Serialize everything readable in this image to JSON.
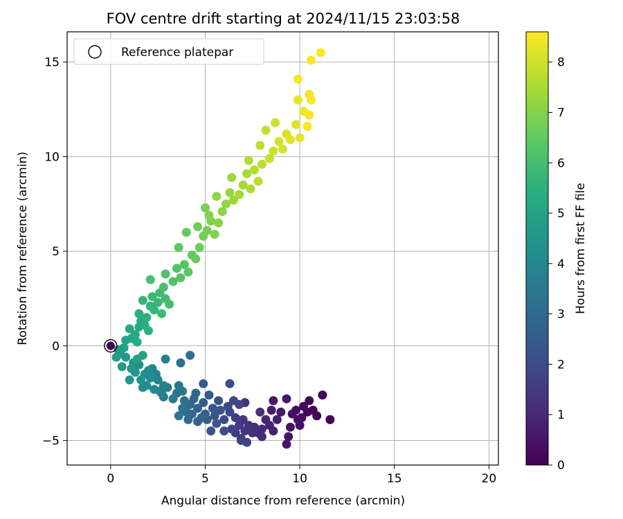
{
  "chart_data": {
    "type": "scatter",
    "title": "FOV centre drift starting at 2024/11/15 23:03:58",
    "xlabel": "Angular distance from reference (arcmin)",
    "ylabel": "Rotation from reference (arcmin)",
    "xlim": [
      -2.3,
      20.5
    ],
    "ylim": [
      -6.3,
      16.6
    ],
    "xticks": [
      0,
      5,
      10,
      15,
      20
    ],
    "yticks": [
      -5,
      0,
      5,
      10,
      15
    ],
    "xtick_labels": [
      "0",
      "5",
      "10",
      "15",
      "20"
    ],
    "ytick_labels": [
      "−5",
      "0",
      "5",
      "10",
      "15"
    ],
    "grid": true,
    "legend": {
      "placement": "top-left",
      "entries": [
        "Reference platepar"
      ]
    },
    "reference_point": {
      "x": 0,
      "y": 0
    },
    "colorbar": {
      "label": "Hours from first FF file",
      "range": [
        0,
        8.6
      ],
      "ticks": [
        0,
        1,
        2,
        3,
        4,
        5,
        6,
        7,
        8
      ],
      "tick_labels": [
        "0",
        "1",
        "2",
        "3",
        "4",
        "5",
        "6",
        "7",
        "8"
      ],
      "colormap": "viridis"
    },
    "points": [
      [
        11.6,
        -3.9,
        0.02
      ],
      [
        11.2,
        -2.6,
        0.05
      ],
      [
        10.9,
        -3.7,
        0.08
      ],
      [
        10.4,
        -3.5,
        0.12
      ],
      [
        10.7,
        -3.4,
        0.15
      ],
      [
        10.2,
        -3.2,
        0.18
      ],
      [
        10.5,
        -2.9,
        0.22
      ],
      [
        10.1,
        -3.8,
        0.25
      ],
      [
        9.8,
        -3.4,
        0.3
      ],
      [
        10.0,
        -4.2,
        0.33
      ],
      [
        9.6,
        -3.6,
        0.37
      ],
      [
        9.9,
        -3.9,
        0.4
      ],
      [
        9.5,
        -4.3,
        0.45
      ],
      [
        9.4,
        -4.8,
        0.5
      ],
      [
        9.3,
        -5.2,
        0.55
      ],
      [
        9.3,
        -2.8,
        0.58
      ],
      [
        9.0,
        -3.5,
        0.62
      ],
      [
        8.6,
        -2.9,
        0.66
      ],
      [
        8.5,
        -3.4,
        0.7
      ],
      [
        8.8,
        -3.9,
        0.74
      ],
      [
        8.6,
        -4.5,
        0.8
      ],
      [
        8.4,
        -4.2,
        0.85
      ],
      [
        8.2,
        -3.9,
        0.9
      ],
      [
        8.0,
        -4.4,
        0.95
      ],
      [
        7.8,
        -4.6,
        1.0
      ],
      [
        8.0,
        -4.8,
        1.05
      ],
      [
        7.6,
        -4.3,
        1.1
      ],
      [
        7.9,
        -3.5,
        1.15
      ],
      [
        7.5,
        -4.6,
        1.2
      ],
      [
        7.3,
        -4.2,
        1.25
      ],
      [
        7.1,
        -3.0,
        1.3
      ],
      [
        7.0,
        -3.9,
        1.35
      ],
      [
        7.1,
        -4.5,
        1.4
      ],
      [
        6.9,
        -4.9,
        1.45
      ],
      [
        6.6,
        -4.6,
        1.5
      ],
      [
        6.8,
        -4.2,
        1.55
      ],
      [
        6.6,
        -3.8,
        1.6
      ],
      [
        7.2,
        -5.1,
        1.65
      ],
      [
        6.9,
        -5.0,
        1.7
      ],
      [
        6.4,
        -4.4,
        1.75
      ],
      [
        6.3,
        -3.5,
        1.8
      ],
      [
        6.8,
        -3.1,
        1.85
      ],
      [
        6.5,
        -2.9,
        1.9
      ],
      [
        6.2,
        -3.2,
        1.95
      ],
      [
        6.0,
        -3.9,
        2.0
      ],
      [
        6.3,
        -2.0,
        2.05
      ],
      [
        6.0,
        -4.5,
        2.1
      ],
      [
        5.8,
        -3.4,
        2.15
      ],
      [
        5.7,
        -2.9,
        2.2
      ],
      [
        5.5,
        -3.7,
        2.25
      ],
      [
        5.6,
        -4.1,
        2.3
      ],
      [
        5.3,
        -4.5,
        2.35
      ],
      [
        5.4,
        -3.3,
        2.4
      ],
      [
        5.2,
        -2.6,
        2.45
      ],
      [
        5.1,
        -3.9,
        2.5
      ],
      [
        4.9,
        -2.0,
        2.55
      ],
      [
        4.9,
        -3.0,
        2.6
      ],
      [
        5.0,
        -3.6,
        2.65
      ],
      [
        4.6,
        -3.3,
        2.7
      ],
      [
        4.8,
        -3.8,
        2.75
      ],
      [
        4.6,
        -4.0,
        2.8
      ],
      [
        4.4,
        -2.8,
        2.85
      ],
      [
        4.2,
        -3.1,
        2.9
      ],
      [
        4.3,
        -3.6,
        2.95
      ],
      [
        4.5,
        -2.5,
        3.0
      ],
      [
        4.1,
        -3.9,
        3.05
      ],
      [
        4.0,
        -3.5,
        3.1
      ],
      [
        3.9,
        -2.9,
        3.15
      ],
      [
        4.2,
        -0.5,
        3.2
      ],
      [
        3.7,
        -0.9,
        3.25
      ],
      [
        3.8,
        -3.3,
        3.3
      ],
      [
        3.6,
        -3.7,
        3.35
      ],
      [
        3.5,
        -2.5,
        3.4
      ],
      [
        3.6,
        -2.1,
        3.45
      ],
      [
        3.8,
        -2.4,
        3.5
      ],
      [
        3.3,
        -2.8,
        3.55
      ],
      [
        3.0,
        -2.2,
        3.6
      ],
      [
        2.8,
        -2.7,
        3.65
      ],
      [
        2.9,
        -0.7,
        3.7
      ],
      [
        2.7,
        -2.5,
        3.75
      ],
      [
        2.8,
        -2.1,
        3.8
      ],
      [
        2.6,
        -2.4,
        3.85
      ],
      [
        2.5,
        -1.8,
        3.9
      ],
      [
        2.4,
        -1.5,
        3.95
      ],
      [
        2.2,
        -1.2,
        4.0
      ],
      [
        2.3,
        -2.3,
        4.05
      ],
      [
        2.1,
        -1.7,
        4.1
      ],
      [
        2.0,
        -1.3,
        4.15
      ],
      [
        1.9,
        -2.1,
        4.2
      ],
      [
        1.8,
        -1.5,
        4.25
      ],
      [
        1.7,
        -2.2,
        4.3
      ],
      [
        1.5,
        -1.0,
        4.35
      ],
      [
        1.6,
        -1.8,
        4.4
      ],
      [
        1.3,
        -1.4,
        4.45
      ],
      [
        1.2,
        -0.9,
        4.5
      ],
      [
        1.1,
        -1.2,
        4.55
      ],
      [
        1.0,
        -1.8,
        4.6
      ],
      [
        0.8,
        -0.6,
        4.65
      ],
      [
        0.6,
        -1.1,
        4.7
      ],
      [
        0.5,
        -0.4,
        4.75
      ],
      [
        0.4,
        -0.2,
        4.8
      ],
      [
        0.7,
        -0.1,
        4.85
      ],
      [
        0.3,
        -0.6,
        4.9
      ],
      [
        1.4,
        -0.7,
        4.95
      ],
      [
        1.7,
        -0.5,
        5.0
      ],
      [
        0.8,
        0.3,
        5.05
      ],
      [
        1.1,
        0.4,
        5.1
      ],
      [
        1.3,
        0.6,
        5.15
      ],
      [
        1.0,
        0.9,
        5.2
      ],
      [
        1.5,
        1.0,
        5.25
      ],
      [
        1.4,
        0.2,
        5.3
      ],
      [
        1.6,
        1.3,
        5.35
      ],
      [
        1.8,
        1.1,
        5.4
      ],
      [
        1.5,
        1.7,
        5.45
      ],
      [
        2.0,
        0.8,
        5.5
      ],
      [
        1.9,
        1.5,
        5.55
      ],
      [
        2.1,
        2.1,
        5.6
      ],
      [
        1.7,
        2.4,
        5.65
      ],
      [
        2.3,
        1.9,
        5.7
      ],
      [
        2.5,
        2.3,
        5.75
      ],
      [
        2.2,
        2.6,
        5.8
      ],
      [
        2.7,
        1.7,
        5.85
      ],
      [
        2.6,
        2.8,
        5.9
      ],
      [
        2.9,
        2.5,
        5.95
      ],
      [
        3.1,
        2.2,
        6.0
      ],
      [
        2.8,
        3.1,
        6.05
      ],
      [
        2.1,
        3.5,
        6.1
      ],
      [
        2.9,
        3.8,
        6.15
      ],
      [
        3.3,
        3.4,
        6.2
      ],
      [
        3.5,
        4.1,
        6.25
      ],
      [
        3.7,
        3.6,
        6.3
      ],
      [
        3.9,
        4.3,
        6.35
      ],
      [
        4.1,
        3.9,
        6.4
      ],
      [
        3.6,
        5.2,
        6.45
      ],
      [
        4.3,
        4.8,
        6.5
      ],
      [
        4.0,
        6.0,
        6.55
      ],
      [
        4.5,
        4.6,
        6.6
      ],
      [
        4.7,
        5.2,
        6.65
      ],
      [
        4.6,
        6.3,
        6.7
      ],
      [
        4.9,
        5.8,
        6.75
      ],
      [
        5.1,
        6.1,
        6.8
      ],
      [
        5.0,
        7.3,
        6.85
      ],
      [
        5.3,
        6.6,
        6.9
      ],
      [
        5.5,
        5.9,
        6.95
      ],
      [
        5.2,
        6.9,
        7.0
      ],
      [
        5.7,
        6.5,
        7.05
      ],
      [
        5.9,
        7.1,
        7.1
      ],
      [
        5.6,
        7.9,
        7.15
      ],
      [
        6.1,
        7.5,
        7.2
      ],
      [
        6.3,
        8.1,
        7.25
      ],
      [
        6.5,
        7.7,
        7.3
      ],
      [
        6.4,
        8.9,
        7.35
      ],
      [
        6.8,
        8.0,
        7.4
      ],
      [
        7.0,
        8.5,
        7.45
      ],
      [
        7.2,
        9.1,
        7.5
      ],
      [
        7.4,
        8.3,
        7.55
      ],
      [
        7.3,
        9.8,
        7.6
      ],
      [
        7.6,
        9.3,
        7.65
      ],
      [
        7.8,
        8.7,
        7.7
      ],
      [
        8.0,
        9.6,
        7.75
      ],
      [
        7.9,
        10.6,
        7.8
      ],
      [
        8.2,
        11.4,
        7.85
      ],
      [
        8.4,
        9.9,
        7.9
      ],
      [
        8.6,
        10.3,
        7.95
      ],
      [
        8.7,
        11.8,
        8.0
      ],
      [
        8.9,
        10.8,
        8.05
      ],
      [
        9.1,
        10.4,
        8.1
      ],
      [
        9.3,
        11.2,
        8.15
      ],
      [
        9.5,
        10.9,
        8.2
      ],
      [
        9.8,
        11.7,
        8.25
      ],
      [
        10.0,
        11.0,
        8.3
      ],
      [
        9.9,
        13.0,
        8.35
      ],
      [
        10.2,
        12.4,
        8.4
      ],
      [
        10.5,
        13.3,
        8.45
      ],
      [
        10.4,
        11.6,
        8.48
      ],
      [
        10.5,
        12.2,
        8.5
      ],
      [
        9.9,
        14.1,
        8.52
      ],
      [
        10.6,
        15.1,
        8.55
      ],
      [
        11.1,
        15.5,
        8.58
      ],
      [
        10.6,
        13.0,
        8.6
      ]
    ]
  }
}
